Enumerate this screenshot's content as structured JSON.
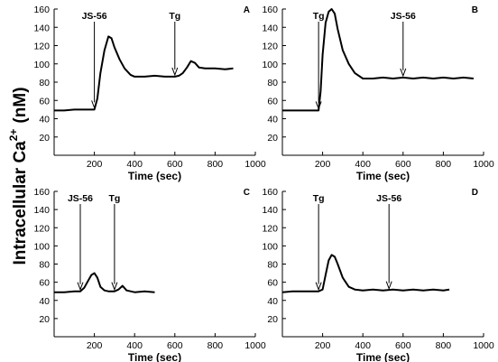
{
  "figure": {
    "ylabel": {
      "main": "Intracellular Ca",
      "superscript": "2+",
      "unit": "(nM)"
    }
  },
  "chart_data": [
    {
      "type": "line",
      "panel_label": "A",
      "xlabel": "Time (sec)",
      "xlim": [
        0,
        1000
      ],
      "ylim": [
        0,
        160
      ],
      "x_ticks": [
        200,
        400,
        600,
        800,
        1000
      ],
      "y_ticks": [
        20,
        40,
        60,
        80,
        100,
        120,
        140,
        160
      ],
      "series": [
        {
          "x": [
            0,
            50,
            100,
            150,
            200,
            215,
            230,
            250,
            270,
            285,
            300,
            325,
            350,
            380,
            400,
            450,
            500,
            550,
            600,
            620,
            640,
            660,
            680,
            700,
            720,
            750,
            800,
            850,
            890
          ],
          "y": [
            49,
            49,
            50,
            50,
            50,
            62,
            90,
            115,
            130,
            128,
            118,
            105,
            95,
            88,
            86,
            86,
            87,
            86,
            86,
            87,
            90,
            96,
            103,
            101,
            96,
            95,
            95,
            94,
            95
          ]
        }
      ],
      "annotations": [
        {
          "text": "JS-56",
          "x": 200,
          "y": 50
        },
        {
          "text": "Tg",
          "x": 600,
          "y": 86
        }
      ]
    },
    {
      "type": "line",
      "panel_label": "B",
      "xlabel": "Time (sec)",
      "xlim": [
        0,
        1000
      ],
      "ylim": [
        0,
        160
      ],
      "x_ticks": [
        200,
        400,
        600,
        800,
        1000
      ],
      "y_ticks": [
        20,
        40,
        60,
        80,
        100,
        120,
        140,
        160
      ],
      "series": [
        {
          "x": [
            0,
            50,
            100,
            150,
            180,
            190,
            200,
            215,
            230,
            245,
            260,
            275,
            300,
            330,
            360,
            400,
            450,
            500,
            550,
            600,
            650,
            700,
            750,
            800,
            850,
            900,
            950
          ],
          "y": [
            49,
            49,
            49,
            49,
            49,
            70,
            110,
            145,
            157,
            160,
            155,
            138,
            115,
            100,
            90,
            84,
            84,
            85,
            84,
            85,
            84,
            85,
            84,
            85,
            84,
            85,
            84
          ]
        }
      ],
      "annotations": [
        {
          "text": "Tg",
          "x": 180,
          "y": 49
        },
        {
          "text": "JS-56",
          "x": 600,
          "y": 85
        }
      ]
    },
    {
      "type": "line",
      "panel_label": "C",
      "xlabel": "Time (sec)",
      "xlim": [
        0,
        1000
      ],
      "ylim": [
        0,
        160
      ],
      "x_ticks": [
        200,
        400,
        600,
        800,
        1000
      ],
      "y_ticks": [
        20,
        40,
        60,
        80,
        100,
        120,
        140,
        160
      ],
      "series": [
        {
          "x": [
            0,
            50,
            100,
            130,
            150,
            170,
            185,
            200,
            215,
            230,
            250,
            270,
            300,
            320,
            340,
            360,
            400,
            450,
            500
          ],
          "y": [
            49,
            49,
            50,
            50,
            54,
            62,
            68,
            70,
            65,
            55,
            51,
            50,
            50,
            52,
            56,
            51,
            49,
            50,
            49
          ]
        }
      ],
      "annotations": [
        {
          "text": "JS-56",
          "x": 130,
          "y": 50
        },
        {
          "text": "Tg",
          "x": 300,
          "y": 50
        }
      ]
    },
    {
      "type": "line",
      "panel_label": "D",
      "xlabel": "Time (sec)",
      "xlim": [
        0,
        1000
      ],
      "ylim": [
        0,
        160
      ],
      "x_ticks": [
        200,
        400,
        600,
        800,
        1000
      ],
      "y_ticks": [
        20,
        40,
        60,
        80,
        100,
        120,
        140,
        160
      ],
      "series": [
        {
          "x": [
            0,
            50,
            100,
            150,
            180,
            200,
            215,
            230,
            245,
            260,
            275,
            300,
            330,
            360,
            400,
            450,
            500,
            550,
            600,
            650,
            700,
            750,
            800,
            830
          ],
          "y": [
            49,
            50,
            50,
            50,
            50,
            52,
            68,
            84,
            90,
            88,
            80,
            65,
            55,
            52,
            51,
            52,
            51,
            52,
            51,
            52,
            51,
            52,
            51,
            52
          ]
        }
      ],
      "annotations": [
        {
          "text": "Tg",
          "x": 180,
          "y": 50
        },
        {
          "text": "JS-56",
          "x": 530,
          "y": 51
        }
      ]
    }
  ]
}
